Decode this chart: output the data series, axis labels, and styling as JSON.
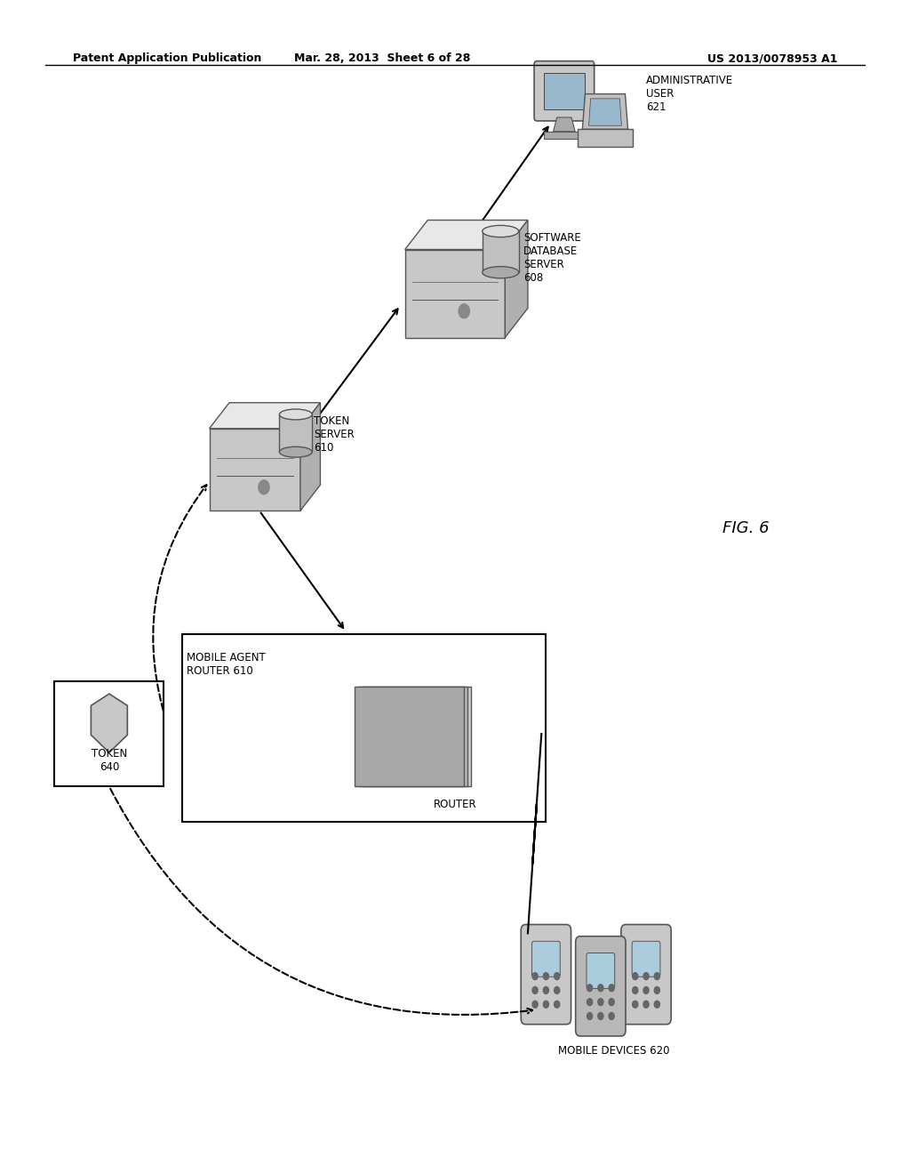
{
  "title_left": "Patent Application Publication",
  "title_mid": "Mar. 28, 2013  Sheet 6 of 28",
  "title_right": "US 2013/0078953 A1",
  "fig_label": "FIG. 6",
  "bg_color": "#ffffff",
  "line_color": "#000000",
  "box_color": "#d0d0d0"
}
